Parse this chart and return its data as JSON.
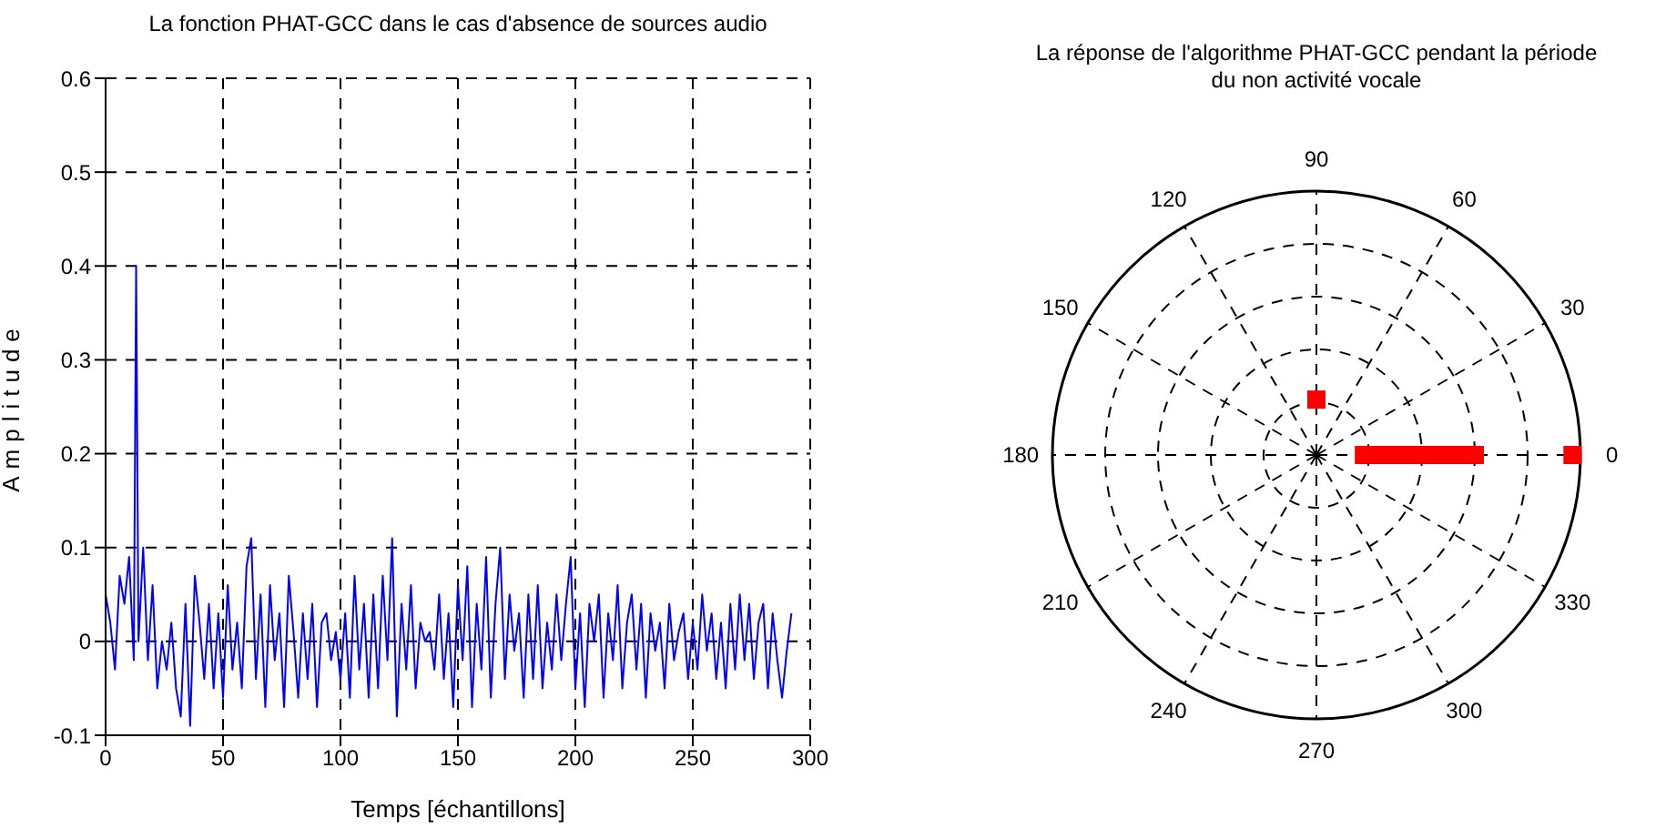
{
  "chart_data": [
    {
      "type": "line",
      "title": "La fonction PHAT-GCC dans le cas d'absence de sources audio",
      "xlabel": "Temps [échantillons]",
      "ylabel": "Amplitude",
      "xlim": [
        0,
        300
      ],
      "xticks": [
        0,
        50,
        100,
        150,
        200,
        250,
        300
      ],
      "ylim": [
        -0.1,
        0.6
      ],
      "yticks": [
        -0.1,
        0,
        0.1,
        0.2,
        0.3,
        0.4,
        0.5,
        0.6
      ],
      "grid": true,
      "line_style": "solid",
      "series": [
        {
          "color": "#0000ff",
          "x": [
            0,
            2,
            4,
            6,
            8,
            10,
            12,
            13,
            14,
            16,
            18,
            20,
            22,
            24,
            26,
            28,
            30,
            32,
            34,
            36,
            38,
            40,
            42,
            44,
            46,
            48,
            50,
            52,
            54,
            56,
            58,
            60,
            62,
            64,
            66,
            68,
            70,
            72,
            74,
            76,
            78,
            80,
            82,
            84,
            86,
            88,
            90,
            92,
            94,
            96,
            98,
            100,
            102,
            104,
            106,
            108,
            110,
            112,
            114,
            116,
            118,
            120,
            122,
            124,
            126,
            128,
            130,
            132,
            134,
            136,
            138,
            140,
            142,
            144,
            146,
            148,
            150,
            152,
            154,
            156,
            158,
            160,
            162,
            164,
            166,
            168,
            170,
            172,
            174,
            176,
            178,
            180,
            182,
            184,
            186,
            188,
            190,
            192,
            194,
            196,
            198,
            200,
            202,
            204,
            206,
            208,
            210,
            212,
            214,
            216,
            218,
            220,
            222,
            224,
            226,
            228,
            230,
            232,
            234,
            236,
            238,
            240,
            242,
            244,
            246,
            248,
            250,
            252,
            254,
            256,
            258,
            260,
            262,
            264,
            266,
            268,
            270,
            272,
            274,
            276,
            278,
            280,
            282,
            284,
            286,
            288,
            290,
            292
          ],
          "values": [
            0.05,
            0.02,
            -0.03,
            0.07,
            0.04,
            0.09,
            -0.02,
            0.4,
            0.0,
            0.1,
            -0.02,
            0.06,
            -0.05,
            0.0,
            -0.03,
            0.02,
            -0.05,
            -0.08,
            0.04,
            -0.09,
            0.07,
            0.02,
            -0.04,
            0.04,
            -0.05,
            0.03,
            -0.06,
            0.06,
            -0.03,
            0.02,
            -0.05,
            0.08,
            0.11,
            -0.04,
            0.05,
            -0.07,
            0.06,
            -0.02,
            0.03,
            -0.07,
            0.07,
            0.01,
            -0.06,
            0.03,
            -0.04,
            0.04,
            -0.07,
            0.02,
            0.03,
            -0.02,
            0.01,
            -0.04,
            0.03,
            -0.06,
            0.07,
            -0.03,
            0.04,
            -0.06,
            0.05,
            -0.05,
            0.07,
            -0.02,
            0.11,
            -0.08,
            0.04,
            -0.03,
            0.06,
            -0.05,
            0.02,
            0.0,
            0.01,
            -0.03,
            0.05,
            -0.04,
            0.03,
            -0.07,
            0.06,
            -0.02,
            0.08,
            -0.07,
            0.04,
            -0.03,
            0.09,
            -0.06,
            0.04,
            0.1,
            -0.04,
            0.05,
            -0.01,
            0.03,
            -0.06,
            0.05,
            -0.04,
            0.06,
            -0.05,
            0.02,
            -0.03,
            0.05,
            -0.02,
            0.04,
            0.09,
            -0.05,
            0.03,
            -0.07,
            0.04,
            0.0,
            0.05,
            -0.06,
            0.03,
            -0.02,
            0.06,
            -0.05,
            0.02,
            0.05,
            -0.03,
            0.04,
            -0.06,
            0.03,
            -0.01,
            0.02,
            -0.05,
            0.04,
            -0.02,
            0.01,
            0.03,
            -0.04,
            0.02,
            -0.03,
            0.05,
            -0.01,
            0.03,
            -0.04,
            0.02,
            -0.05,
            0.04,
            -0.03,
            0.05,
            -0.02,
            0.04,
            -0.04,
            0.02,
            0.04,
            -0.05,
            0.03,
            -0.02,
            -0.06,
            -0.01,
            0.03
          ]
        }
      ]
    },
    {
      "type": "other",
      "title": "La réponse de l'algorithme PHAT-GCC pendant la période\ndu non activité vocale",
      "categories": [
        "0",
        "30",
        "60",
        "90",
        "120",
        "150",
        "180",
        "210",
        "240",
        "270",
        "300",
        "330"
      ]
    }
  ]
}
